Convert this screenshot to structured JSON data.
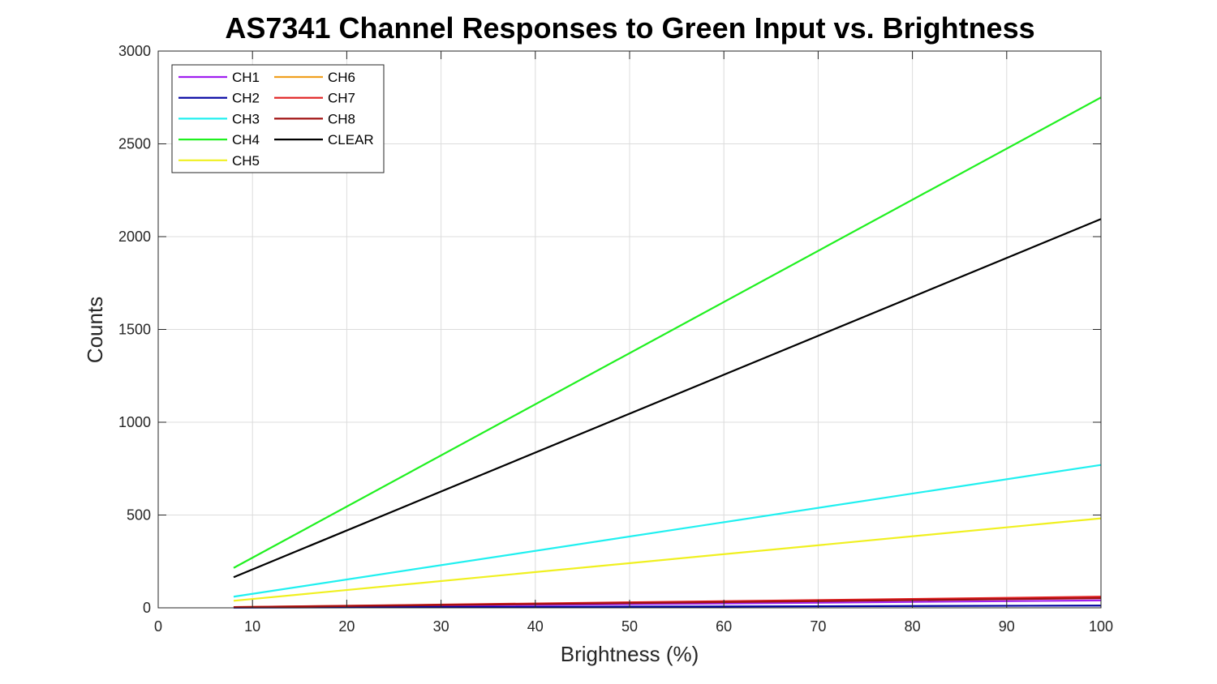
{
  "chart_data": {
    "type": "line",
    "title": "AS7341 Channel Responses to Green Input vs. Brightness",
    "xlabel": "Brightness (%)",
    "ylabel": "Counts",
    "xlim": [
      0,
      100
    ],
    "ylim": [
      0,
      3000
    ],
    "xticks": [
      0,
      10,
      20,
      30,
      40,
      50,
      60,
      70,
      80,
      90,
      100
    ],
    "yticks": [
      0,
      500,
      1000,
      1500,
      2000,
      2500,
      3000
    ],
    "grid": true,
    "legend_position": "top-left",
    "legend_columns": 2,
    "x": [
      8,
      100
    ],
    "series": [
      {
        "name": "CH1",
        "color": "#a020f0",
        "values": [
          2,
          40
        ]
      },
      {
        "name": "CH2",
        "color": "#0000a0",
        "values": [
          1,
          12
        ]
      },
      {
        "name": "CH3",
        "color": "#20f0f0",
        "values": [
          60,
          770
        ]
      },
      {
        "name": "CH4",
        "color": "#20f020",
        "values": [
          215,
          2750
        ]
      },
      {
        "name": "CH5",
        "color": "#f0f020",
        "values": [
          38,
          482
        ]
      },
      {
        "name": "CH6",
        "color": "#f0a020",
        "values": [
          4,
          55
        ]
      },
      {
        "name": "CH7",
        "color": "#e02020",
        "values": [
          4,
          60
        ]
      },
      {
        "name": "CH8",
        "color": "#a01010",
        "values": [
          3,
          52
        ]
      },
      {
        "name": "CLEAR",
        "color": "#000000",
        "values": [
          165,
          2095
        ]
      }
    ]
  }
}
